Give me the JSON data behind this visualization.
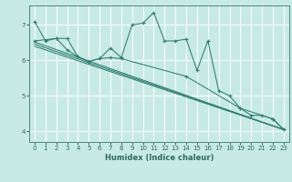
{
  "background_color": "#c8eae4",
  "grid_color": "#ffffff",
  "line_color": "#2e7d6e",
  "marker_color": "#2e7d6e",
  "xlabel": "Humidex (Indice chaleur)",
  "xlim": [
    -0.5,
    23.5
  ],
  "ylim": [
    3.7,
    7.55
  ],
  "yticks": [
    4,
    5,
    6,
    7
  ],
  "xticks": [
    0,
    1,
    2,
    3,
    4,
    5,
    6,
    7,
    8,
    9,
    10,
    11,
    12,
    13,
    14,
    15,
    16,
    17,
    18,
    19,
    20,
    21,
    22,
    23
  ],
  "series1_x": [
    0,
    1,
    2,
    3,
    4,
    5,
    6,
    7,
    8,
    9,
    10,
    11,
    12,
    13,
    14,
    15,
    16,
    17,
    18,
    19,
    20,
    21,
    22,
    23
  ],
  "series1_y": [
    7.1,
    6.55,
    6.62,
    6.62,
    6.1,
    5.97,
    6.05,
    6.35,
    6.08,
    7.0,
    7.05,
    7.35,
    6.55,
    6.55,
    6.6,
    5.72,
    6.55,
    5.15,
    5.0,
    4.65,
    4.45,
    4.45,
    4.35,
    4.05
  ],
  "series2_x": [
    0,
    2,
    3,
    4,
    5,
    6,
    7,
    8,
    14,
    19,
    22,
    23
  ],
  "series2_y": [
    6.55,
    6.62,
    6.3,
    6.1,
    5.97,
    6.05,
    6.08,
    6.05,
    5.55,
    4.65,
    4.35,
    4.05
  ],
  "series3_x": [
    0,
    23
  ],
  "series3_y": [
    6.52,
    4.05
  ],
  "series4_x": [
    0,
    23
  ],
  "series4_y": [
    6.46,
    4.05
  ],
  "series5_x": [
    0,
    23
  ],
  "series5_y": [
    6.4,
    4.05
  ]
}
